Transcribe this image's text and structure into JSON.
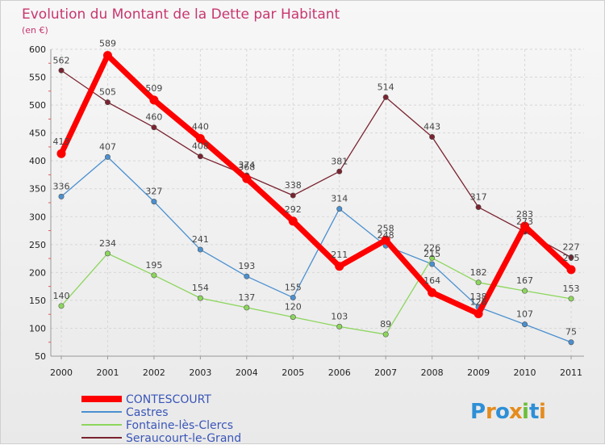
{
  "chart_data": {
    "type": "line",
    "title": "Evolution du Montant de la Dette par Habitant",
    "subtitle": "(en €)",
    "x": [
      "2000",
      "2001",
      "2002",
      "2003",
      "2004",
      "2005",
      "2006",
      "2007",
      "2008",
      "2009",
      "2010",
      "2011"
    ],
    "ylim": [
      50,
      600
    ],
    "yticks": [
      50,
      100,
      150,
      200,
      250,
      300,
      350,
      400,
      450,
      500,
      550,
      600
    ],
    "grid": true,
    "legend_position": "bottom-left",
    "series": [
      {
        "name": "CONTESCOURT",
        "color": "#ff0000",
        "values": [
          413,
          589,
          509,
          440,
          368,
          292,
          211,
          258,
          164,
          126,
          283,
          205
        ]
      },
      {
        "name": "Castres",
        "color": "#4a90d0",
        "values": [
          336,
          407,
          327,
          241,
          193,
          155,
          314,
          248,
          215,
          138,
          107,
          75
        ]
      },
      {
        "name": "Fontaine-lès-Clercs",
        "color": "#8cd65c",
        "values": [
          140,
          234,
          195,
          154,
          137,
          120,
          103,
          89,
          226,
          182,
          167,
          153
        ]
      },
      {
        "name": "Seraucourt-le-Grand",
        "color": "#7a2330",
        "values": [
          562,
          505,
          460,
          408,
          374,
          338,
          381,
          514,
          443,
          317,
          273,
          227
        ]
      }
    ]
  },
  "logo": {
    "letters": [
      "P",
      "r",
      "o",
      "x",
      "i",
      "t",
      "i"
    ],
    "colors": [
      "#2e8fd6",
      "#e58b1c",
      "#2e8fd6",
      "#e58b1c",
      "#6bbf3a",
      "#2e8fd6",
      "#e58b1c"
    ]
  }
}
